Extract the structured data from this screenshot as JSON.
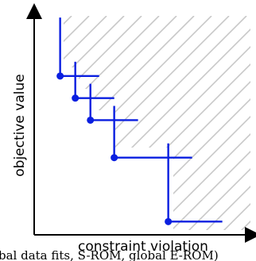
{
  "axes": {
    "x_label": "constraint violation",
    "y_label": "objective value"
  },
  "caption": "bal data fits, S-ROM, global E-ROM)",
  "colors": {
    "line": "#0a1fe0",
    "hatch": "#c8c8c8",
    "axis": "#000000"
  },
  "points": [
    {
      "cv": 0.12,
      "obj": 0.72
    },
    {
      "cv": 0.19,
      "obj": 0.62
    },
    {
      "cv": 0.26,
      "obj": 0.52
    },
    {
      "cv": 0.37,
      "obj": 0.35
    },
    {
      "cv": 0.62,
      "obj": 0.06
    }
  ]
}
